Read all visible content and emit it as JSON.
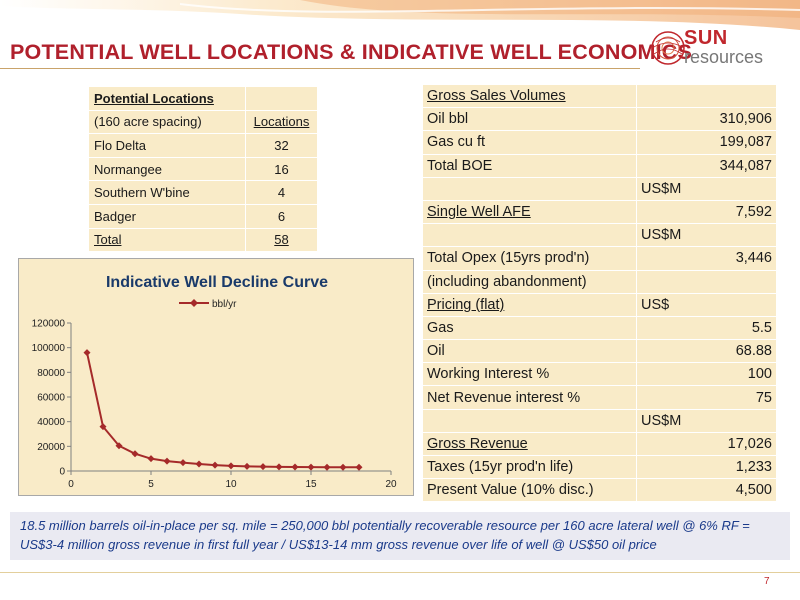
{
  "header": {
    "title": "POTENTIAL WELL LOCATIONS & INDICATIVE WELL ECONOMICS",
    "logo_sun": "SUN",
    "logo_resources": "resources"
  },
  "locations_table": {
    "heading": "Potential Locations",
    "subheading": "(160 acre spacing)",
    "col_header": "Locations",
    "rows": [
      {
        "name": "Flo Delta",
        "value": "32"
      },
      {
        "name": "Normangee",
        "value": "16"
      },
      {
        "name": "Southern W'bine",
        "value": "4"
      },
      {
        "name": "Badger",
        "value": "6"
      }
    ],
    "total_label": "Total",
    "total_value": "58"
  },
  "economics_table": {
    "rows": [
      {
        "label": "Gross Sales Volumes",
        "value": "",
        "label_underline": true
      },
      {
        "label": "Oil bbl",
        "value": "310,906"
      },
      {
        "label": "Gas cu ft",
        "value": "199,087"
      },
      {
        "label": "Total BOE",
        "value": "344,087"
      },
      {
        "label": "",
        "value": "US$M",
        "unit": true
      },
      {
        "label": "Single Well AFE",
        "value": "7,592",
        "label_underline": true
      },
      {
        "label": "",
        "value": "US$M",
        "unit": true
      },
      {
        "label": "Total Opex (15yrs prod'n)",
        "value": "3,446"
      },
      {
        "label": "(including abandonment)",
        "value": ""
      },
      {
        "label": "Pricing (flat)",
        "value": "US$",
        "unit": true,
        "label_underline": true
      },
      {
        "label": "Gas",
        "value": "5.5"
      },
      {
        "label": "Oil",
        "value": "68.88"
      },
      {
        "label": "Working Interest %",
        "value": "100"
      },
      {
        "label": "Net Revenue interest %",
        "value": "75"
      },
      {
        "label": "",
        "value": "US$M",
        "unit": true
      },
      {
        "label": "Gross Revenue",
        "value": "17,026",
        "label_underline": true
      },
      {
        "label": "Taxes (15yr prod'n life)",
        "value": "1,233"
      },
      {
        "label": "Present Value (10% disc.)",
        "value": "4,500"
      }
    ]
  },
  "chart_data": {
    "type": "line",
    "title": "Indicative Well Decline Curve",
    "xlabel": "",
    "ylabel": "",
    "xlim": [
      0,
      20
    ],
    "ylim": [
      0,
      120000
    ],
    "x_ticks": [
      0,
      5,
      10,
      15,
      20
    ],
    "y_ticks": [
      0,
      20000,
      40000,
      60000,
      80000,
      100000,
      120000
    ],
    "legend": "top-center",
    "grid": false,
    "series": [
      {
        "name": "bbl/yr",
        "color": "#a52a2a",
        "x": [
          1,
          2,
          3,
          4,
          5,
          6,
          7,
          8,
          9,
          10,
          11,
          12,
          13,
          14,
          15,
          16,
          17,
          18
        ],
        "y": [
          96000,
          36000,
          20500,
          14000,
          10000,
          8000,
          6800,
          5700,
          4800,
          4200,
          3800,
          3500,
          3300,
          3200,
          3100,
          3000,
          3000,
          3000
        ]
      }
    ]
  },
  "footer": {
    "note": "18.5 million barrels oil-in-place per sq. mile = 250,000 bbl potentially recoverable resource per 160 acre lateral well @ 6% RF = US$3-4 million gross revenue in first full year / US$13-14 mm gross revenue over life of well @ US$50 oil price",
    "page_number": "7"
  },
  "colors": {
    "title": "#b0202c",
    "table_fill": "#f9ebc8",
    "series_line": "#a52a2a",
    "note_text": "#1a3a8a",
    "note_bg": "#eaeaf2"
  }
}
